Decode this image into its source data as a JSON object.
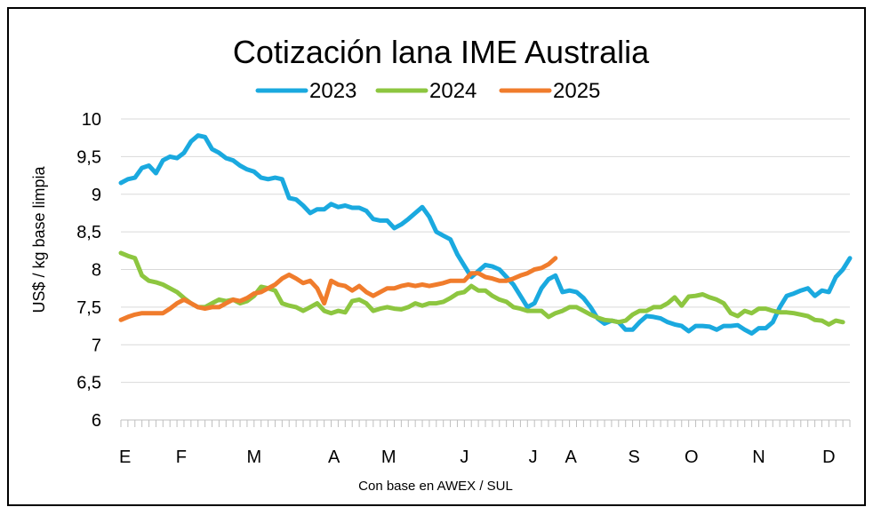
{
  "chart_data": {
    "type": "line",
    "title": "Cotización lana IME Australia",
    "xlabel": "Con base en AWEX / SUL",
    "ylabel": "US$ / kg base limpia",
    "ylim": [
      6,
      10
    ],
    "yticks": [
      "6",
      "6,5",
      "7",
      "7,5",
      "8",
      "8,5",
      "9",
      "9,5",
      "10"
    ],
    "xlim": [
      0,
      52
    ],
    "month_ticks": [
      {
        "label": "E",
        "x": 0.3
      },
      {
        "label": "F",
        "x": 4.3
      },
      {
        "label": "M",
        "x": 9.5
      },
      {
        "label": "A",
        "x": 15.2
      },
      {
        "label": "M",
        "x": 19.1
      },
      {
        "label": "J",
        "x": 24.5
      },
      {
        "label": "J",
        "x": 29.4
      },
      {
        "label": "A",
        "x": 32.1
      },
      {
        "label": "S",
        "x": 36.6
      },
      {
        "label": "O",
        "x": 40.7
      },
      {
        "label": "N",
        "x": 45.5
      },
      {
        "label": "D",
        "x": 50.5
      }
    ],
    "grid": true,
    "legend_position": "top",
    "series": [
      {
        "name": "2023",
        "color": "#1aa9df",
        "x": [
          0,
          0.5,
          1,
          1.5,
          2,
          2.5,
          3,
          3.5,
          4,
          4.5,
          5,
          5.5,
          6,
          6.5,
          7,
          7.5,
          8,
          8.5,
          9,
          9.5,
          10,
          10.5,
          11,
          11.5,
          12,
          12.5,
          13,
          13.5,
          14,
          14.5,
          15,
          15.5,
          16,
          16.5,
          17,
          17.5,
          18,
          18.5,
          19,
          19.5,
          20,
          20.5,
          21,
          21.5,
          22,
          22.5,
          23,
          23.5,
          24,
          24.5,
          25,
          25.5,
          26,
          26.5,
          27,
          27.5,
          28,
          28.5,
          29,
          29.5,
          30,
          30.5,
          31,
          31.5,
          32,
          32.5,
          33,
          33.5,
          34,
          34.5,
          35,
          35.5,
          36,
          36.5,
          37,
          37.5,
          38,
          38.5,
          39,
          39.5,
          40,
          40.5,
          41,
          41.5,
          42,
          42.5,
          43,
          43.5,
          44,
          44.5,
          45,
          45.5,
          46,
          46.5,
          47,
          47.5,
          48,
          48.5,
          49,
          49.5,
          50,
          50.5,
          51,
          51.5,
          52
        ],
        "values": [
          9.15,
          9.2,
          9.22,
          9.35,
          9.38,
          9.28,
          9.45,
          9.5,
          9.48,
          9.55,
          9.7,
          9.78,
          9.76,
          9.6,
          9.55,
          9.48,
          9.45,
          9.38,
          9.33,
          9.3,
          9.22,
          9.2,
          9.22,
          9.2,
          8.95,
          8.93,
          8.85,
          8.75,
          8.8,
          8.8,
          8.87,
          8.83,
          8.85,
          8.82,
          8.82,
          8.78,
          8.67,
          8.65,
          8.65,
          8.55,
          8.6,
          8.67,
          8.75,
          8.83,
          8.7,
          8.5,
          8.45,
          8.4,
          8.2,
          8.05,
          7.9,
          7.98,
          8.06,
          8.04,
          8.0,
          7.9,
          7.8,
          7.65,
          7.5,
          7.55,
          7.75,
          7.87,
          7.92,
          7.7,
          7.72,
          7.7,
          7.62,
          7.5,
          7.35,
          7.28,
          7.32,
          7.3,
          7.2,
          7.2,
          7.3,
          7.38,
          7.37,
          7.35,
          7.3,
          7.27,
          7.25,
          7.18,
          7.25,
          7.25,
          7.24,
          7.2,
          7.25,
          7.25,
          7.26,
          7.2,
          7.15,
          7.22,
          7.22,
          7.3,
          7.5,
          7.65,
          7.68,
          7.72,
          7.75,
          7.65,
          7.72,
          7.7,
          7.9,
          8.0,
          8.15
        ]
      },
      {
        "name": "2024",
        "color": "#8dc640",
        "x": [
          0,
          0.5,
          1,
          1.5,
          2,
          2.5,
          3,
          3.5,
          4,
          4.5,
          5,
          5.5,
          6,
          6.5,
          7,
          7.5,
          8,
          8.5,
          9,
          9.5,
          10,
          10.5,
          11,
          11.5,
          12,
          12.5,
          13,
          13.5,
          14,
          14.5,
          15,
          15.5,
          16,
          16.5,
          17,
          17.5,
          18,
          18.5,
          19,
          19.5,
          20,
          20.5,
          21,
          21.5,
          22,
          22.5,
          23,
          23.5,
          24,
          24.5,
          25,
          25.5,
          26,
          26.5,
          27,
          27.5,
          28,
          28.5,
          29,
          29.5,
          30,
          30.5,
          31,
          31.5,
          32,
          32.5,
          33,
          33.5,
          34,
          34.5,
          35,
          35.5,
          36,
          36.5,
          37,
          37.5,
          38,
          38.5,
          39,
          39.5,
          40,
          40.5,
          41,
          41.5,
          42,
          42.5,
          43,
          43.5,
          44,
          44.5,
          45,
          45.5,
          46,
          46.5,
          47,
          47.5,
          48,
          48.5,
          49,
          49.5,
          50,
          50.5,
          51,
          51.5
        ],
        "values": [
          8.22,
          8.18,
          8.15,
          7.92,
          7.85,
          7.83,
          7.8,
          7.75,
          7.7,
          7.62,
          7.55,
          7.5,
          7.5,
          7.55,
          7.6,
          7.58,
          7.6,
          7.55,
          7.58,
          7.65,
          7.77,
          7.75,
          7.72,
          7.55,
          7.52,
          7.5,
          7.45,
          7.5,
          7.55,
          7.45,
          7.42,
          7.45,
          7.43,
          7.58,
          7.6,
          7.55,
          7.45,
          7.48,
          7.5,
          7.48,
          7.47,
          7.5,
          7.55,
          7.52,
          7.55,
          7.55,
          7.57,
          7.62,
          7.68,
          7.7,
          7.78,
          7.72,
          7.72,
          7.65,
          7.6,
          7.57,
          7.5,
          7.48,
          7.45,
          7.45,
          7.45,
          7.37,
          7.42,
          7.45,
          7.5,
          7.5,
          7.45,
          7.4,
          7.36,
          7.33,
          7.32,
          7.3,
          7.32,
          7.4,
          7.45,
          7.45,
          7.5,
          7.5,
          7.55,
          7.63,
          7.52,
          7.64,
          7.65,
          7.67,
          7.63,
          7.6,
          7.55,
          7.42,
          7.38,
          7.45,
          7.42,
          7.48,
          7.48,
          7.45,
          7.43,
          7.43,
          7.42,
          7.4,
          7.38,
          7.33,
          7.32,
          7.27,
          7.32,
          7.3
        ]
      },
      {
        "name": "2025",
        "color": "#f07c2c",
        "x": [
          0,
          0.5,
          1,
          1.5,
          2,
          2.5,
          3,
          3.5,
          4,
          4.5,
          5,
          5.5,
          6,
          6.5,
          7,
          7.5,
          8,
          8.5,
          9,
          9.5,
          10,
          10.5,
          11,
          11.5,
          12,
          12.5,
          13,
          13.5,
          14,
          14.5,
          15,
          15.5,
          16,
          16.5,
          17,
          17.5,
          18,
          18.5,
          19,
          19.5,
          20,
          20.5,
          21,
          21.5,
          22,
          22.5,
          23,
          23.5,
          24,
          24.5,
          25,
          25.5,
          26,
          26.5,
          27,
          27.5,
          28,
          28.5,
          29,
          29.5,
          30,
          30.5,
          31
        ],
        "values": [
          7.33,
          7.37,
          7.4,
          7.42,
          7.42,
          7.42,
          7.42,
          7.48,
          7.55,
          7.6,
          7.55,
          7.5,
          7.48,
          7.5,
          7.5,
          7.55,
          7.6,
          7.58,
          7.62,
          7.68,
          7.7,
          7.75,
          7.8,
          7.88,
          7.93,
          7.88,
          7.82,
          7.85,
          7.75,
          7.55,
          7.85,
          7.8,
          7.78,
          7.72,
          7.78,
          7.7,
          7.65,
          7.7,
          7.75,
          7.75,
          7.78,
          7.8,
          7.78,
          7.8,
          7.78,
          7.8,
          7.82,
          7.85,
          7.85,
          7.85,
          7.95,
          7.95,
          7.9,
          7.88,
          7.85,
          7.85,
          7.88,
          7.92,
          7.95,
          8.0,
          8.02,
          8.07,
          8.15
        ]
      }
    ]
  }
}
